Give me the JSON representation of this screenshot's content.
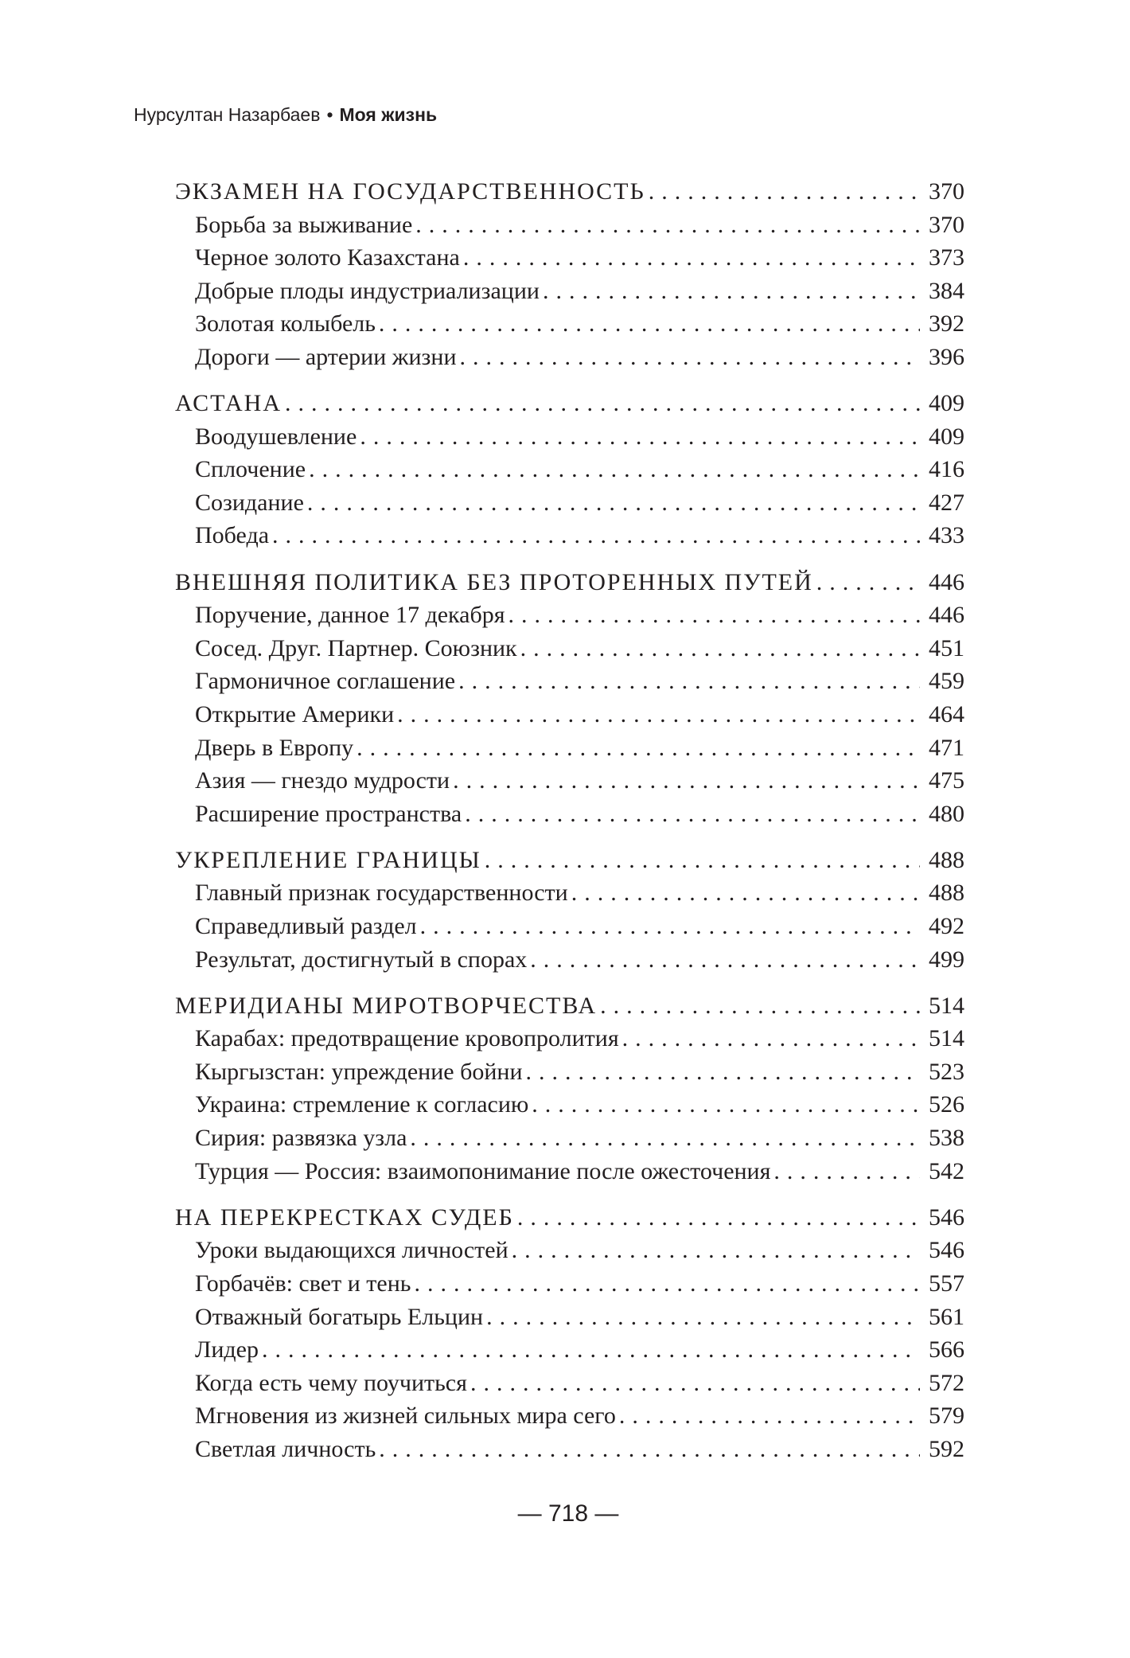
{
  "header": {
    "author": "Нурсултан Назарбаев",
    "separator": "•",
    "title": "Моя жизнь"
  },
  "sections": [
    {
      "title": "ЭКЗАМЕН НА ГОСУДАРСТВЕННОСТЬ",
      "page": "370",
      "items": [
        {
          "title": "Борьба за выживание",
          "page": "370"
        },
        {
          "title": "Черное золото Казахстана",
          "page": "373"
        },
        {
          "title": "Добрые плоды индустриализации",
          "page": "384"
        },
        {
          "title": "Золотая колыбель",
          "page": "392"
        },
        {
          "title": "Дороги — артерии жизни",
          "page": "396"
        }
      ]
    },
    {
      "title": "АСТАНА",
      "page": "409",
      "items": [
        {
          "title": "Воодушевление",
          "page": "409"
        },
        {
          "title": "Сплочение",
          "page": "416"
        },
        {
          "title": "Созидание",
          "page": "427"
        },
        {
          "title": "Победа",
          "page": "433"
        }
      ]
    },
    {
      "title": "ВНЕШНЯЯ ПОЛИТИКА БЕЗ ПРОТОРЕННЫХ ПУТЕЙ",
      "page": "446",
      "items": [
        {
          "title": "Поручение, данное 17 декабря",
          "page": "446"
        },
        {
          "title": "Сосед. Друг. Партнер. Союзник",
          "page": "451"
        },
        {
          "title": "Гармоничное соглашение",
          "page": "459"
        },
        {
          "title": "Открытие Америки",
          "page": "464"
        },
        {
          "title": "Дверь в Европу",
          "page": "471"
        },
        {
          "title": "Азия — гнездо мудрости",
          "page": "475"
        },
        {
          "title": "Расширение пространства",
          "page": "480"
        }
      ]
    },
    {
      "title": "УКРЕПЛЕНИЕ ГРАНИЦЫ",
      "page": "488",
      "items": [
        {
          "title": "Главный признак государственности",
          "page": "488"
        },
        {
          "title": "Справедливый раздел",
          "page": "492"
        },
        {
          "title": "Результат, достигнутый в спорах",
          "page": "499"
        }
      ]
    },
    {
      "title": "МЕРИДИАНЫ МИРОТВОРЧЕСТВА",
      "page": "514",
      "items": [
        {
          "title": "Карабах: предотвращение кровопролития",
          "page": "514"
        },
        {
          "title": "Кыргызстан: упреждение бойни",
          "page": "523"
        },
        {
          "title": "Украина: стремление к согласию",
          "page": "526"
        },
        {
          "title": "Сирия: развязка узла",
          "page": "538"
        },
        {
          "title": "Турция — Россия: взаимопонимание после ожесточения",
          "page": "542"
        }
      ]
    },
    {
      "title": "НА ПЕРЕКРЕСТКАХ СУДЕБ",
      "page": "546",
      "items": [
        {
          "title": "Уроки выдающихся личностей",
          "page": "546"
        },
        {
          "title": "Горбачёв: свет и тень",
          "page": "557"
        },
        {
          "title": "Отважный богатырь Ельцин",
          "page": "561"
        },
        {
          "title": "Лидер",
          "page": "566"
        },
        {
          "title": "Когда есть чему поучиться",
          "page": "572"
        },
        {
          "title": "Мгновения из жизней сильных мира сего",
          "page": "579"
        },
        {
          "title": "Светлая личность",
          "page": "592"
        }
      ]
    }
  ],
  "footer": {
    "page_number": "— 718 —"
  }
}
